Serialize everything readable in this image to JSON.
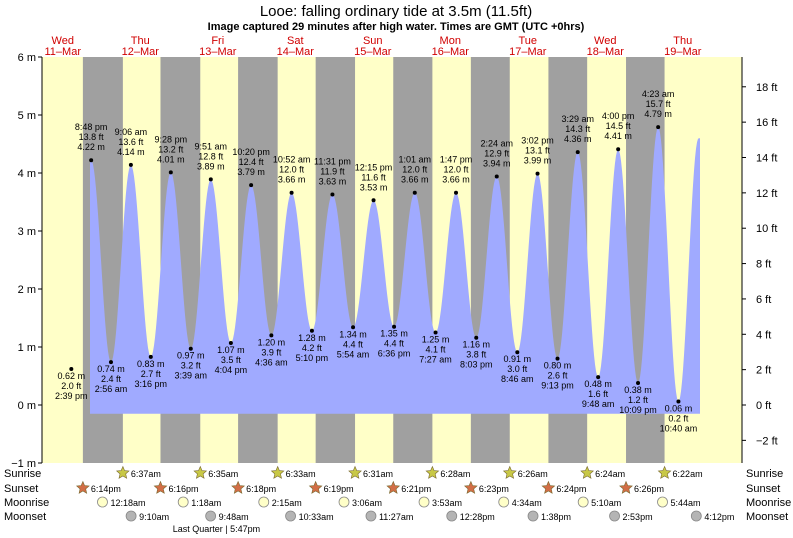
{
  "title": "Looe: falling  ordinary tide at 3.5m (11.5ft)",
  "subtitle": "Image captured 29 minutes after high water. Times are GMT (UTC +0hrs)",
  "colors": {
    "day": "#ffffc8",
    "night": "#a0a0a0",
    "tide": "#a0aaff",
    "sun": "#c8c846",
    "sunset": "#d26e46",
    "moon": "#ffffc8",
    "moonset": "#b4b4b4"
  },
  "chart_data": {
    "type": "area",
    "title": "Looe: falling  ordinary tide at 3.5m (11.5ft)",
    "subtitle": "Image captured 29 minutes after high water. Times are GMT (UTC +0hrs)",
    "x_start": "2026-03-11T00:00",
    "x_end": "2026-03-19T21:00",
    "ylim_m": [
      -1,
      6
    ],
    "yticks_m": [
      "−1 m",
      "0 m",
      "1 m",
      "2 m",
      "3 m",
      "4 m",
      "5 m",
      "6 m"
    ],
    "yticks_ft": [
      "−2 ft",
      "0 ft",
      "2 ft",
      "4 ft",
      "6 ft",
      "8 ft",
      "10 ft",
      "12 ft",
      "14 ft",
      "16 ft",
      "18 ft"
    ],
    "days": [
      {
        "dow": "Wed",
        "date": "11–Mar"
      },
      {
        "dow": "Thu",
        "date": "12–Mar"
      },
      {
        "dow": "Fri",
        "date": "13–Mar"
      },
      {
        "dow": "Sat",
        "date": "14–Mar"
      },
      {
        "dow": "Sun",
        "date": "15–Mar"
      },
      {
        "dow": "Mon",
        "date": "16–Mar"
      },
      {
        "dow": "Tue",
        "date": "17–Mar"
      },
      {
        "dow": "Wed",
        "date": "18–Mar"
      },
      {
        "dow": "Thu",
        "date": "19–Mar"
      }
    ],
    "tides": [
      {
        "type": "low",
        "day": 0,
        "time": "2:39 pm",
        "m": 0.62,
        "m_label": "0.62 m",
        "ft_label": "2.0 ft"
      },
      {
        "type": "high",
        "day": 0,
        "time": "8:48 pm",
        "m": 4.22,
        "m_label": "4.22 m",
        "ft_label": "13.8 ft"
      },
      {
        "type": "low",
        "day": 1,
        "time": "2:56 am",
        "m": 0.74,
        "m_label": "0.74 m",
        "ft_label": "2.4 ft"
      },
      {
        "type": "high",
        "day": 1,
        "time": "9:06 am",
        "m": 4.14,
        "m_label": "4.14 m",
        "ft_label": "13.6 ft"
      },
      {
        "type": "low",
        "day": 1,
        "time": "3:16 pm",
        "m": 0.83,
        "m_label": "0.83 m",
        "ft_label": "2.7 ft"
      },
      {
        "type": "high",
        "day": 1,
        "time": "9:28 pm",
        "m": 4.01,
        "m_label": "4.01 m",
        "ft_label": "13.2 ft"
      },
      {
        "type": "low",
        "day": 2,
        "time": "3:39 am",
        "m": 0.97,
        "m_label": "0.97 m",
        "ft_label": "3.2 ft"
      },
      {
        "type": "high",
        "day": 2,
        "time": "9:51 am",
        "m": 3.89,
        "m_label": "3.89 m",
        "ft_label": "12.8 ft"
      },
      {
        "type": "low",
        "day": 2,
        "time": "4:04 pm",
        "m": 1.07,
        "m_label": "1.07 m",
        "ft_label": "3.5 ft"
      },
      {
        "type": "high",
        "day": 2,
        "time": "10:20 pm",
        "m": 3.79,
        "m_label": "3.79 m",
        "ft_label": "12.4 ft"
      },
      {
        "type": "low",
        "day": 3,
        "time": "4:36 am",
        "m": 1.2,
        "m_label": "1.20 m",
        "ft_label": "3.9 ft"
      },
      {
        "type": "high",
        "day": 3,
        "time": "10:52 am",
        "m": 3.66,
        "m_label": "3.66 m",
        "ft_label": "12.0 ft"
      },
      {
        "type": "low",
        "day": 3,
        "time": "5:10 pm",
        "m": 1.28,
        "m_label": "1.28 m",
        "ft_label": "4.2 ft"
      },
      {
        "type": "high",
        "day": 3,
        "time": "11:31 pm",
        "m": 3.63,
        "m_label": "3.63 m",
        "ft_label": "11.9 ft"
      },
      {
        "type": "low",
        "day": 4,
        "time": "5:54 am",
        "m": 1.34,
        "m_label": "1.34 m",
        "ft_label": "4.4 ft"
      },
      {
        "type": "high",
        "day": 4,
        "time": "12:15 pm",
        "m": 3.53,
        "m_label": "3.53 m",
        "ft_label": "11.6 ft"
      },
      {
        "type": "low",
        "day": 4,
        "time": "6:36 pm",
        "m": 1.35,
        "m_label": "1.35 m",
        "ft_label": "4.4 ft"
      },
      {
        "type": "high",
        "day": 5,
        "time": "1:01 am",
        "m": 3.66,
        "m_label": "3.66 m",
        "ft_label": "12.0 ft"
      },
      {
        "type": "low",
        "day": 5,
        "time": "7:27 am",
        "m": 1.25,
        "m_label": "1.25 m",
        "ft_label": "4.1 ft"
      },
      {
        "type": "high",
        "day": 5,
        "time": "1:47 pm",
        "m": 3.66,
        "m_label": "3.66 m",
        "ft_label": "12.0 ft"
      },
      {
        "type": "low",
        "day": 5,
        "time": "8:03 pm",
        "m": 1.16,
        "m_label": "1.16 m",
        "ft_label": "3.8 ft"
      },
      {
        "type": "high",
        "day": 6,
        "time": "2:24 am",
        "m": 3.94,
        "m_label": "3.94 m",
        "ft_label": "12.9 ft"
      },
      {
        "type": "low",
        "day": 6,
        "time": "8:46 am",
        "m": 0.91,
        "m_label": "0.91 m",
        "ft_label": "3.0 ft"
      },
      {
        "type": "high",
        "day": 6,
        "time": "3:02 pm",
        "m": 3.99,
        "m_label": "3.99 m",
        "ft_label": "13.1 ft"
      },
      {
        "type": "low",
        "day": 6,
        "time": "9:13 pm",
        "m": 0.8,
        "m_label": "0.80 m",
        "ft_label": "2.6 ft"
      },
      {
        "type": "high",
        "day": 7,
        "time": "3:29 am",
        "m": 4.36,
        "m_label": "4.36 m",
        "ft_label": "14.3 ft"
      },
      {
        "type": "low",
        "day": 7,
        "time": "9:48 am",
        "m": 0.48,
        "m_label": "0.48 m",
        "ft_label": "1.6 ft"
      },
      {
        "type": "high",
        "day": 7,
        "time": "4:00 pm",
        "m": 4.41,
        "m_label": "4.41 m",
        "ft_label": "14.5 ft"
      },
      {
        "type": "low",
        "day": 7,
        "time": "10:09 pm",
        "m": 0.38,
        "m_label": "0.38 m",
        "ft_label": "1.2 ft"
      },
      {
        "type": "high",
        "day": 8,
        "time": "4:23 am",
        "m": 4.79,
        "m_label": "4.79 m",
        "ft_label": "15.7 ft"
      },
      {
        "type": "low",
        "day": 8,
        "time": "10:40 am",
        "m": 0.06,
        "m_label": "0.06 m",
        "ft_label": "0.2 ft"
      }
    ],
    "sunrise_label": "Sunrise",
    "sunset_label": "Sunset",
    "moonrise_label": "Moonrise",
    "moonset_label": "Moonset",
    "sunrise": [
      {
        "day": 1,
        "time": "6:37am"
      },
      {
        "day": 2,
        "time": "6:35am"
      },
      {
        "day": 3,
        "time": "6:33am"
      },
      {
        "day": 4,
        "time": "6:31am"
      },
      {
        "day": 5,
        "time": "6:28am"
      },
      {
        "day": 6,
        "time": "6:26am"
      },
      {
        "day": 7,
        "time": "6:24am"
      },
      {
        "day": 8,
        "time": "6:22am"
      }
    ],
    "sunset": [
      {
        "day": 0,
        "time": "6:14pm"
      },
      {
        "day": 1,
        "time": "6:16pm"
      },
      {
        "day": 2,
        "time": "6:18pm"
      },
      {
        "day": 3,
        "time": "6:19pm"
      },
      {
        "day": 4,
        "time": "6:21pm"
      },
      {
        "day": 5,
        "time": "6:23pm"
      },
      {
        "day": 6,
        "time": "6:24pm"
      },
      {
        "day": 7,
        "time": "6:26pm"
      }
    ],
    "moonrise": [
      {
        "day": 1,
        "time": "12:18am"
      },
      {
        "day": 2,
        "time": "1:18am"
      },
      {
        "day": 3,
        "time": "2:15am"
      },
      {
        "day": 4,
        "time": "3:06am"
      },
      {
        "day": 5,
        "time": "3:53am"
      },
      {
        "day": 6,
        "time": "4:34am"
      },
      {
        "day": 7,
        "time": "5:10am"
      },
      {
        "day": 8,
        "time": "5:44am"
      }
    ],
    "moonset": [
      {
        "day": 1,
        "time": "9:10am"
      },
      {
        "day": 2,
        "time": "9:48am"
      },
      {
        "day": 3,
        "time": "10:33am"
      },
      {
        "day": 4,
        "time": "11:27am"
      },
      {
        "day": 5,
        "time": "12:28pm"
      },
      {
        "day": 6,
        "time": "1:38pm"
      },
      {
        "day": 7,
        "time": "2:53pm"
      },
      {
        "day": 8,
        "time": "4:12pm"
      }
    ],
    "moon_phase_note": {
      "day": 2,
      "time": "5:47pm",
      "text": "Last Quarter | 5:47pm"
    }
  }
}
